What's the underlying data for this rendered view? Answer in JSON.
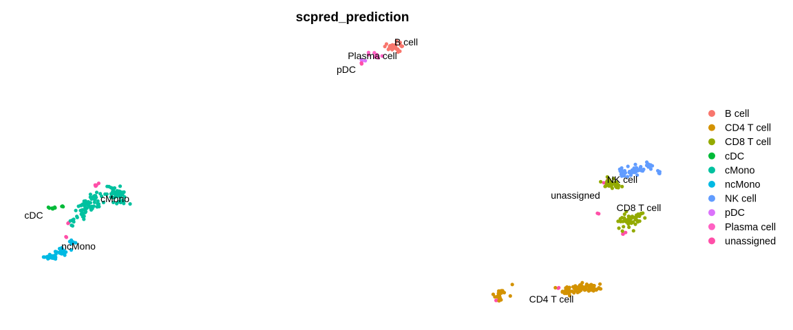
{
  "chart_data": {
    "type": "scatter",
    "title": "scpred_prediction",
    "xlabel": "",
    "ylabel": "",
    "axes": "none",
    "grid": false,
    "legend_position": "right",
    "series": [
      {
        "name": "B cell",
        "color": "#F8766D"
      },
      {
        "name": "CD4 T cell",
        "color": "#D39200"
      },
      {
        "name": "CD8 T cell",
        "color": "#93AA00"
      },
      {
        "name": "cDC",
        "color": "#00BA38"
      },
      {
        "name": "cMono",
        "color": "#00C19F"
      },
      {
        "name": "ncMono",
        "color": "#00B9E3"
      },
      {
        "name": "NK cell",
        "color": "#619CFF"
      },
      {
        "name": "pDC",
        "color": "#DB72FB"
      },
      {
        "name": "Plasma cell",
        "color": "#FF61C3"
      },
      {
        "name": "unassigned",
        "color": "#FF4FA8"
      }
    ],
    "cluster_labels": [
      "B cell",
      "Plasma cell",
      "pDC",
      "cMono",
      "cDC",
      "ncMono",
      "NK cell",
      "unassigned",
      "CD8 T cell",
      "CD4 T cell"
    ]
  }
}
